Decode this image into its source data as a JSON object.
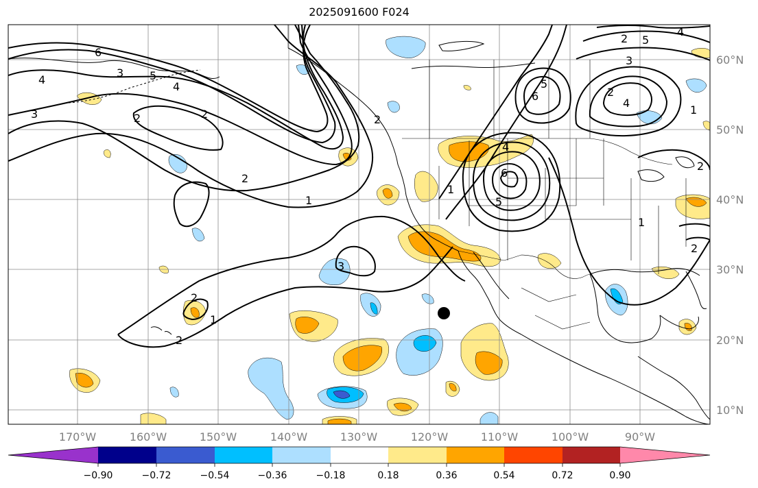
{
  "title": "2025091600 F024",
  "colors": {
    "neg_090": "#9932CC",
    "neg_072": "#00008B",
    "neg_054": "#3A5BD0",
    "neg_036": "#00BFFF",
    "neg_018": "#ADDFFF",
    "zero": "#FFFFFF",
    "pos_018": "#FFEA8A",
    "pos_036": "#FFA500",
    "pos_054": "#FF4500",
    "pos_072": "#B22222",
    "pos_090": "#FF88AA",
    "contour": "#000000",
    "grid": "#808080"
  },
  "map": {
    "lon_labels": [
      "170°W",
      "160°W",
      "150°W",
      "140°W",
      "130°W",
      "120°W",
      "110°W",
      "100°W",
      "90°W"
    ],
    "lat_labels": [
      "60°N",
      "50°N",
      "40°N",
      "30°N",
      "20°N",
      "10°N"
    ],
    "contour_labels": [
      "6",
      "3",
      "4",
      "3",
      "5",
      "4",
      "2",
      "2",
      "2",
      "1",
      "3",
      "2",
      "2",
      "1",
      "2",
      "6",
      "5",
      "2",
      "5",
      "4",
      "3",
      "2",
      "4",
      "1",
      "6",
      "5",
      "1",
      "2",
      "2",
      "4",
      "1"
    ],
    "marker": "storm-center"
  },
  "colorbar": {
    "ticks": [
      "−0.90",
      "−0.72",
      "−0.54",
      "−0.36",
      "−0.18",
      "0.18",
      "0.36",
      "0.54",
      "0.72",
      "0.90"
    ]
  }
}
